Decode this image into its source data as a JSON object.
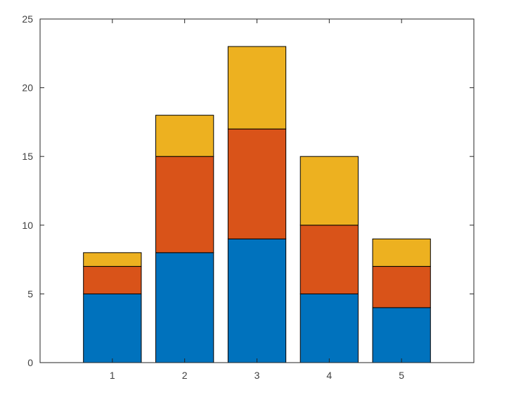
{
  "chart_data": {
    "type": "bar",
    "stacked": true,
    "categories": [
      "1",
      "2",
      "3",
      "4",
      "5"
    ],
    "x": [
      1,
      2,
      3,
      4,
      5
    ],
    "series": [
      {
        "values": [
          5,
          8,
          9,
          5,
          4
        ],
        "color": "#0072BD"
      },
      {
        "values": [
          2,
          7,
          8,
          5,
          3
        ],
        "color": "#D95319"
      },
      {
        "values": [
          1,
          3,
          6,
          5,
          2
        ],
        "color": "#EDB120"
      }
    ],
    "title": "",
    "xlabel": "",
    "ylabel": "",
    "xlim": [
      0,
      6
    ],
    "ylim": [
      0,
      25
    ],
    "yticks": [
      0,
      5,
      10,
      15,
      20,
      25
    ],
    "xticks": [
      1,
      2,
      3,
      4,
      5
    ],
    "grid": false,
    "legend": "none",
    "box": true
  }
}
